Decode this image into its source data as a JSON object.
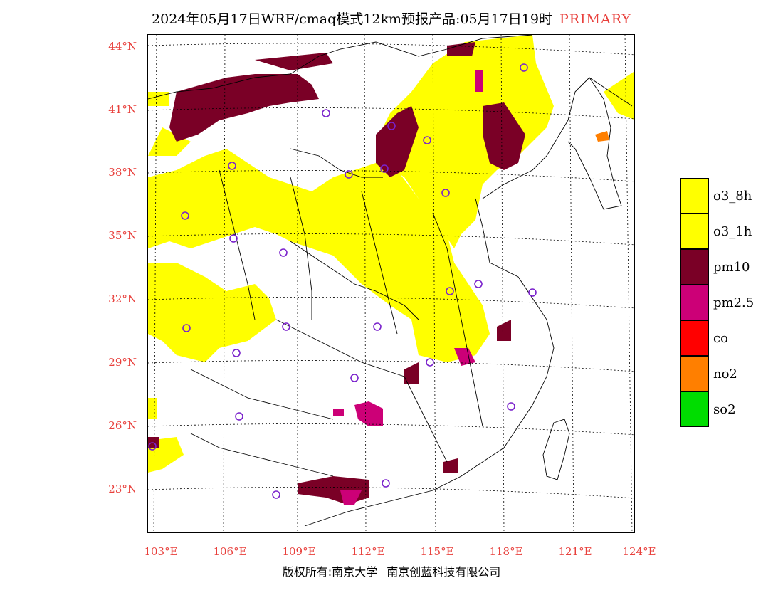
{
  "title": {
    "main": "2024年05月17日WRF/cmaq模式12km预报产品:05月17日19时",
    "tag": "PRIMARY"
  },
  "colors": {
    "label_red": "#e8403c",
    "o3_8h": "#ffff00",
    "o3_1h": "#ffff00",
    "pm10": "#7a0026",
    "pm25": "#cc0077",
    "co": "#ff0000",
    "no2": "#ff7f00",
    "so2": "#00dd00",
    "station": "#7a22cc"
  },
  "lat_labels": [
    "44°N",
    "41°N",
    "38°N",
    "35°N",
    "32°N",
    "29°N",
    "26°N",
    "23°N"
  ],
  "lon_labels": [
    "103°E",
    "106°E",
    "109°E",
    "112°E",
    "115°E",
    "118°E",
    "121°E",
    "124°E"
  ],
  "legend": [
    {
      "label": "o3_8h",
      "color": "#ffff00"
    },
    {
      "label": "o3_1h",
      "color": "#ffff00"
    },
    {
      "label": "pm10",
      "color": "#7a0026"
    },
    {
      "label": "pm2.5",
      "color": "#cc0077"
    },
    {
      "label": "co",
      "color": "#ff0000"
    },
    {
      "label": "no2",
      "color": "#ff7f00"
    },
    {
      "label": "so2",
      "color": "#00dd00"
    }
  ],
  "credit": {
    "left": "版权所有:南京大学",
    "right": "南京创蓝科技有限公司"
  }
}
